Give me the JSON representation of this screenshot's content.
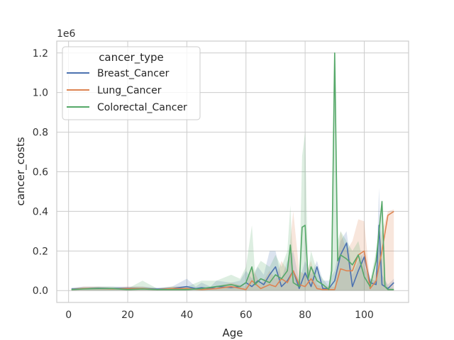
{
  "chart_data": {
    "type": "line",
    "title": "",
    "xlabel": "Age",
    "ylabel": "cancer_costs",
    "offset_label": "1e6",
    "xlim": [
      -4,
      115
    ],
    "ylim": [
      -0.06,
      1.26
    ],
    "xticks": [
      0,
      20,
      40,
      60,
      80,
      100
    ],
    "yticks": [
      0.0,
      0.2,
      0.4,
      0.6,
      0.8,
      1.0,
      1.2
    ],
    "xtick_labels": [
      "0",
      "20",
      "40",
      "60",
      "80",
      "100"
    ],
    "ytick_labels": [
      "0.0",
      "0.2",
      "0.4",
      "0.6",
      "0.8",
      "1.0",
      "1.2"
    ],
    "grid": true,
    "legend": {
      "title": "cancer_type",
      "placement": "upper-left"
    },
    "series": [
      {
        "name": "Breast_Cancer",
        "color": "#4c72b0",
        "x": [
          1,
          5,
          10,
          15,
          20,
          25,
          30,
          35,
          40,
          43,
          45,
          48,
          50,
          55,
          58,
          60,
          62,
          64,
          66,
          68,
          70,
          72,
          74,
          76,
          78,
          80,
          82,
          84,
          86,
          88,
          90,
          92,
          94,
          96,
          98,
          100,
          102,
          104,
          105,
          106,
          108,
          110
        ],
        "y": [
          0.008,
          0.01,
          0.012,
          0.01,
          0.012,
          0.01,
          0.008,
          0.01,
          0.02,
          0.01,
          0.015,
          0.01,
          0.02,
          0.015,
          0.02,
          0.04,
          0.02,
          0.05,
          0.03,
          0.08,
          0.12,
          0.02,
          0.05,
          0.1,
          0.01,
          0.09,
          0.02,
          0.12,
          0.01,
          0.01,
          0.05,
          0.18,
          0.24,
          0.02,
          0.1,
          0.17,
          0.04,
          0.03,
          0.33,
          0.03,
          0.01,
          0.04
        ],
        "band_high": [
          0.015,
          0.02,
          0.02,
          0.02,
          0.02,
          0.02,
          0.015,
          0.02,
          0.06,
          0.02,
          0.04,
          0.02,
          0.05,
          0.04,
          0.05,
          0.1,
          0.06,
          0.12,
          0.08,
          0.2,
          0.2,
          0.06,
          0.15,
          0.2,
          0.05,
          0.15,
          0.08,
          0.15,
          0.05,
          0.05,
          0.1,
          0.25,
          0.3,
          0.08,
          0.15,
          0.2,
          0.06,
          0.05,
          0.52,
          0.08,
          0.03,
          0.06
        ]
      },
      {
        "name": "Lung_Cancer",
        "color": "#dd8452",
        "x": [
          1,
          5,
          10,
          15,
          20,
          25,
          30,
          35,
          40,
          45,
          50,
          55,
          60,
          62,
          65,
          68,
          70,
          72,
          74,
          76,
          78,
          80,
          82,
          84,
          86,
          88,
          90,
          92,
          94,
          96,
          98,
          100,
          102,
          104,
          106,
          108,
          110
        ],
        "y": [
          0.005,
          0.01,
          0.01,
          0.008,
          0.01,
          0.01,
          0.005,
          0.01,
          0.01,
          0.005,
          0.01,
          0.02,
          0.005,
          0.05,
          0.01,
          0.03,
          0.02,
          0.06,
          0.04,
          0.1,
          0.03,
          0.02,
          0.06,
          0.01,
          0.005,
          0.005,
          0.005,
          0.11,
          0.1,
          0.1,
          0.18,
          0.2,
          0.01,
          0.05,
          0.2,
          0.38,
          0.4
        ],
        "band_high": [
          0.01,
          0.02,
          0.02,
          0.015,
          0.02,
          0.02,
          0.01,
          0.02,
          0.02,
          0.01,
          0.02,
          0.04,
          0.02,
          0.12,
          0.03,
          0.1,
          0.06,
          0.15,
          0.1,
          0.4,
          0.1,
          0.08,
          0.15,
          0.03,
          0.02,
          0.02,
          0.02,
          0.3,
          0.2,
          0.25,
          0.36,
          0.35,
          0.04,
          0.1,
          0.3,
          0.4,
          0.41
        ]
      },
      {
        "name": "Colorectal_Cancer",
        "color": "#55a868",
        "x": [
          1,
          5,
          10,
          15,
          20,
          25,
          30,
          35,
          40,
          45,
          50,
          55,
          58,
          60,
          62,
          63,
          65,
          68,
          70,
          72,
          74,
          75,
          76,
          78,
          79,
          80,
          81,
          82,
          84,
          86,
          88,
          89,
          90,
          91,
          92,
          94,
          96,
          98,
          100,
          102,
          104,
          106,
          107,
          108,
          110
        ],
        "y": [
          0.005,
          0.008,
          0.01,
          0.01,
          0.005,
          0.008,
          0.005,
          0.005,
          0.005,
          0.01,
          0.02,
          0.03,
          0.02,
          0.04,
          0.12,
          0.03,
          0.06,
          0.04,
          0.08,
          0.06,
          0.1,
          0.23,
          0.04,
          0.02,
          0.32,
          0.33,
          0.06,
          0.12,
          0.05,
          0.03,
          0.005,
          0.1,
          1.2,
          0.15,
          0.18,
          0.16,
          0.13,
          0.18,
          0.07,
          0.02,
          0.15,
          0.45,
          0.02,
          0.005,
          0.005
        ],
        "band_high": [
          0.01,
          0.015,
          0.02,
          0.02,
          0.01,
          0.05,
          0.01,
          0.02,
          0.02,
          0.05,
          0.05,
          0.08,
          0.06,
          0.12,
          0.33,
          0.1,
          0.15,
          0.12,
          0.18,
          0.12,
          0.2,
          0.43,
          0.1,
          0.05,
          0.68,
          0.8,
          0.1,
          0.2,
          0.1,
          0.06,
          0.02,
          0.2,
          1.2,
          0.25,
          0.3,
          0.25,
          0.2,
          0.25,
          0.12,
          0.05,
          0.2,
          0.45,
          0.05,
          0.02,
          0.01
        ]
      }
    ]
  }
}
